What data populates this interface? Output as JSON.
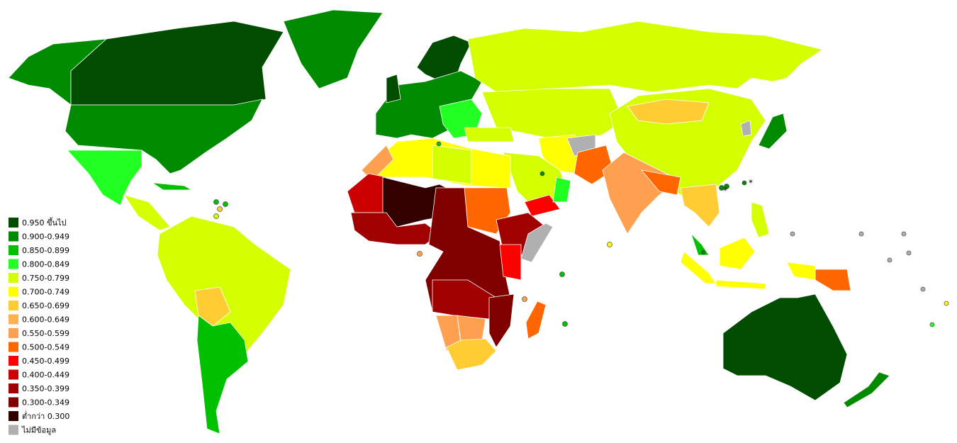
{
  "legend": {
    "items": [
      {
        "label": "0.950 ขึ้นไป",
        "color": "#004d00"
      },
      {
        "label": "0.900-0.949",
        "color": "#008a00"
      },
      {
        "label": "0.850-0.899",
        "color": "#00c000"
      },
      {
        "label": "0.800-0.849",
        "color": "#22ff22"
      },
      {
        "label": "0.750-0.799",
        "color": "#d4ff00"
      },
      {
        "label": "0.700-0.749",
        "color": "#ffff00"
      },
      {
        "label": "0.650-0.699",
        "color": "#ffcc33"
      },
      {
        "label": "0.600-0.649",
        "color": "#ffb24d"
      },
      {
        "label": "0.550-0.599",
        "color": "#ffa050"
      },
      {
        "label": "0.500-0.549",
        "color": "#ff6600"
      },
      {
        "label": "0.450-0.499",
        "color": "#ff0000"
      },
      {
        "label": "0.400-0.449",
        "color": "#cc0000"
      },
      {
        "label": "0.350-0.399",
        "color": "#a00000"
      },
      {
        "label": "0.300-0.349",
        "color": "#800000"
      },
      {
        "label": "ต่ำกว่า 0.300",
        "color": "#330000"
      },
      {
        "label": "ไม่มีข้อมูล",
        "color": "#b0b0b0"
      }
    ]
  },
  "annotations": [
    "*",
    "*"
  ]
}
